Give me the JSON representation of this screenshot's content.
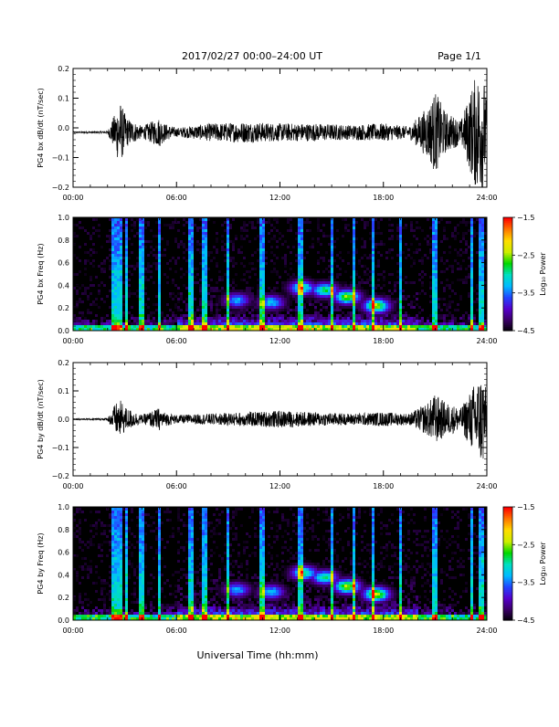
{
  "header": {
    "title": "2017/02/27  00:00–24:00 UT",
    "page": "Page 1/1"
  },
  "footer": {
    "xlabel": "Universal Time (hh:mm)"
  },
  "colors": {
    "trace": "#000000",
    "background": "#ffffff",
    "colormap": [
      "#000000",
      "#3a0066",
      "#5500cc",
      "#2244ff",
      "#00bbff",
      "#00e0c0",
      "#00d800",
      "#ccee00",
      "#ffdd00",
      "#ff7700",
      "#ff0000"
    ]
  },
  "chart_data": [
    {
      "type": "line",
      "ylabel": "PG4 bx dB/dt (nT/sec)",
      "xlim": [
        0,
        24
      ],
      "ylim": [
        -0.2,
        0.2
      ],
      "x_ticks": [
        "00:00",
        "06:00",
        "12:00",
        "18:00",
        "24:00"
      ],
      "y_ticks": [
        "0.2",
        "0.1",
        "0.0",
        "−0.1",
        "−0.2"
      ],
      "baseline": -0.015,
      "envelope": [
        {
          "x": 0.0,
          "amp": 0.002
        },
        {
          "x": 2.0,
          "amp": 0.004
        },
        {
          "x": 2.4,
          "amp": 0.06
        },
        {
          "x": 2.7,
          "amp": 0.11
        },
        {
          "x": 3.1,
          "amp": 0.05
        },
        {
          "x": 4.0,
          "amp": 0.02
        },
        {
          "x": 5.0,
          "amp": 0.05
        },
        {
          "x": 5.3,
          "amp": 0.03
        },
        {
          "x": 6.0,
          "amp": 0.015
        },
        {
          "x": 8.0,
          "amp": 0.03
        },
        {
          "x": 10.0,
          "amp": 0.035
        },
        {
          "x": 12.0,
          "amp": 0.03
        },
        {
          "x": 14.0,
          "amp": 0.03
        },
        {
          "x": 16.0,
          "amp": 0.025
        },
        {
          "x": 18.0,
          "amp": 0.03
        },
        {
          "x": 19.5,
          "amp": 0.02
        },
        {
          "x": 20.6,
          "amp": 0.09
        },
        {
          "x": 21.0,
          "amp": 0.14
        },
        {
          "x": 21.6,
          "amp": 0.07
        },
        {
          "x": 22.5,
          "amp": 0.04
        },
        {
          "x": 23.4,
          "amp": 0.2
        },
        {
          "x": 23.8,
          "amp": 0.2
        },
        {
          "x": 24.0,
          "amp": 0.1
        }
      ]
    },
    {
      "type": "heatmap",
      "ylabel": "PG4 bx Freq (Hz)",
      "colorbar_label": "Log₁₀ Power",
      "xlim": [
        0,
        24
      ],
      "ylim": [
        0,
        1.0
      ],
      "zlim": [
        -4.5,
        -1.5
      ],
      "x_ticks": [
        "00:00",
        "06:00",
        "12:00",
        "18:00",
        "24:00"
      ],
      "y_ticks": [
        "1.0",
        "0.8",
        "0.6",
        "0.4",
        "0.2",
        "0.0"
      ],
      "colorbar_ticks": [
        "−1.5",
        "−2.5",
        "−3.5",
        "−4.5"
      ],
      "vertical_bands": [
        2.4,
        2.7,
        3.1,
        4.0,
        5.0,
        6.8,
        7.6,
        9.0,
        11.0,
        13.2,
        15.0,
        16.3,
        17.4,
        19.0,
        21.0,
        23.1,
        23.7
      ],
      "emission_blobs": [
        {
          "t": 9.5,
          "f": 0.27,
          "level": -3.3
        },
        {
          "t": 11.5,
          "f": 0.25,
          "level": -3.2
        },
        {
          "t": 13.3,
          "f": 0.38,
          "level": -2.9
        },
        {
          "t": 14.6,
          "f": 0.36,
          "level": -2.8
        },
        {
          "t": 15.9,
          "f": 0.3,
          "level": -2.5
        },
        {
          "t": 17.6,
          "f": 0.22,
          "level": -2.4
        }
      ]
    },
    {
      "type": "line",
      "ylabel": "PG4 by dB/dt (nT/sec)",
      "xlim": [
        0,
        24
      ],
      "ylim": [
        -0.2,
        0.2
      ],
      "x_ticks": [
        "00:00",
        "06:00",
        "12:00",
        "18:00",
        "24:00"
      ],
      "y_ticks": [
        "0.2",
        "0.1",
        "0.0",
        "−0.1",
        "−0.2"
      ],
      "baseline": 0.0,
      "envelope": [
        {
          "x": 0.0,
          "amp": 0.002
        },
        {
          "x": 2.0,
          "amp": 0.004
        },
        {
          "x": 2.4,
          "amp": 0.05
        },
        {
          "x": 2.7,
          "amp": 0.07
        },
        {
          "x": 3.1,
          "amp": 0.04
        },
        {
          "x": 4.0,
          "amp": 0.015
        },
        {
          "x": 5.0,
          "amp": 0.04
        },
        {
          "x": 5.3,
          "amp": 0.025
        },
        {
          "x": 6.0,
          "amp": 0.015
        },
        {
          "x": 8.0,
          "amp": 0.02
        },
        {
          "x": 10.0,
          "amp": 0.025
        },
        {
          "x": 12.0,
          "amp": 0.03
        },
        {
          "x": 14.0,
          "amp": 0.025
        },
        {
          "x": 16.0,
          "amp": 0.02
        },
        {
          "x": 18.0,
          "amp": 0.025
        },
        {
          "x": 19.5,
          "amp": 0.02
        },
        {
          "x": 20.6,
          "amp": 0.06
        },
        {
          "x": 21.0,
          "amp": 0.09
        },
        {
          "x": 21.6,
          "amp": 0.06
        },
        {
          "x": 22.5,
          "amp": 0.04
        },
        {
          "x": 23.4,
          "amp": 0.14
        },
        {
          "x": 23.8,
          "amp": 0.17
        },
        {
          "x": 24.0,
          "amp": 0.08
        }
      ]
    },
    {
      "type": "heatmap",
      "ylabel": "PG4 by Freq (Hz)",
      "colorbar_label": "Log₁₀ Power",
      "xlim": [
        0,
        24
      ],
      "ylim": [
        0,
        1.0
      ],
      "zlim": [
        -4.5,
        -1.5
      ],
      "x_ticks": [
        "00:00",
        "06:00",
        "12:00",
        "18:00",
        "24:00"
      ],
      "y_ticks": [
        "1.0",
        "0.8",
        "0.6",
        "0.4",
        "0.2",
        "0.0"
      ],
      "colorbar_ticks": [
        "−1.5",
        "−2.5",
        "−3.5",
        "−4.5"
      ],
      "vertical_bands": [
        2.4,
        2.7,
        3.1,
        4.0,
        5.0,
        6.8,
        7.6,
        9.0,
        11.0,
        13.2,
        15.0,
        16.3,
        17.4,
        19.0,
        21.0,
        23.1,
        23.7
      ],
      "emission_blobs": [
        {
          "t": 9.5,
          "f": 0.27,
          "level": -3.3
        },
        {
          "t": 11.5,
          "f": 0.25,
          "level": -3.2
        },
        {
          "t": 13.4,
          "f": 0.42,
          "level": -2.9
        },
        {
          "t": 14.6,
          "f": 0.38,
          "level": -2.9
        },
        {
          "t": 15.9,
          "f": 0.3,
          "level": -2.4
        },
        {
          "t": 17.6,
          "f": 0.23,
          "level": -2.3
        }
      ]
    }
  ]
}
